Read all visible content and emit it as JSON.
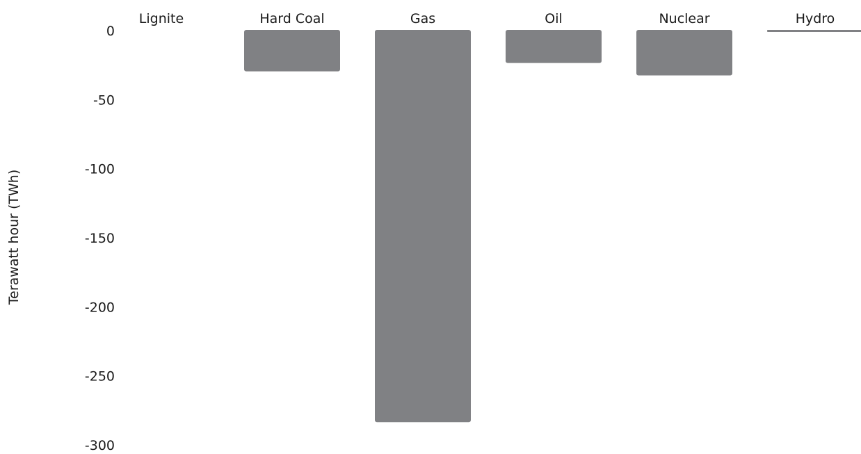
{
  "chart_data": {
    "type": "bar",
    "categories": [
      "Lignite",
      "Hard Coal",
      "Gas",
      "Oil",
      "Nuclear",
      "Hydro"
    ],
    "values": [
      0,
      -30,
      -284,
      -24,
      -33,
      -1
    ],
    "ylabel": "Terawatt hour (TWh)",
    "ylim": [
      -300,
      0
    ],
    "yticks": [
      "0",
      "-50",
      "-100",
      "-150",
      "-200",
      "-250",
      "-300"
    ],
    "ytick_values": [
      0,
      -50,
      -100,
      -150,
      -200,
      -250,
      -300
    ],
    "grid": false,
    "legend": "none",
    "bar_color": "#808184"
  }
}
